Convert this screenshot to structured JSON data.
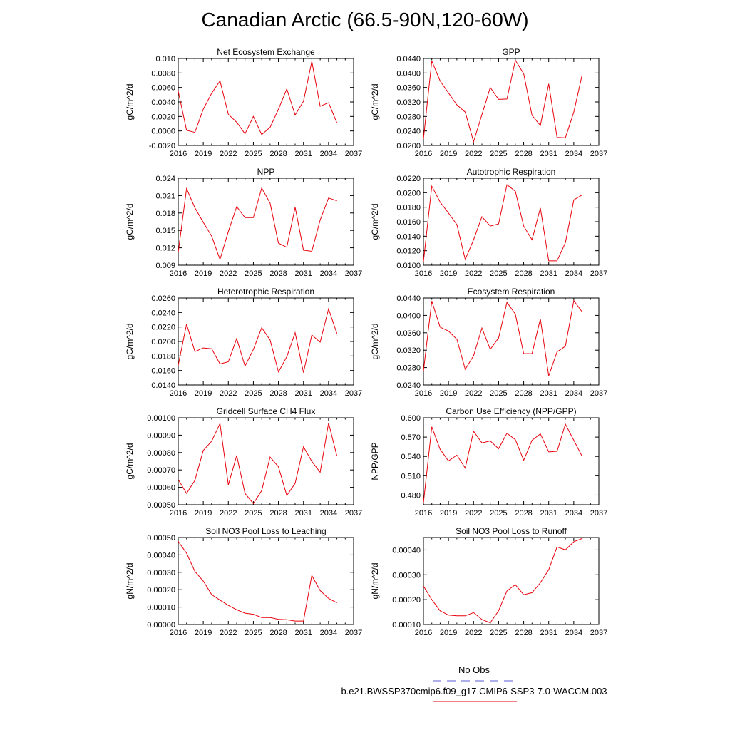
{
  "figure": {
    "title": "Canadian Arctic (66.5-90N,120-60W)",
    "legend": {
      "title": "No Obs",
      "run_label": "b.e21.BWSSP370cmip6.f09_g17.CMIP6-SSP3-7.0-WACCM.003",
      "line_color": "#e8000b",
      "obs_line_color": "#5b5bd6"
    }
  },
  "chart_data": [
    {
      "type": "line",
      "title": "Net Ecosystem Exchange",
      "ylabel": "gC/m^2/d",
      "xlim": [
        2016,
        2037
      ],
      "ylim": [
        -0.002,
        0.01
      ],
      "xticks": [
        2016,
        2019,
        2022,
        2025,
        2028,
        2031,
        2034,
        2037
      ],
      "yticks": [
        "-0.0020",
        "0.0000",
        "0.0020",
        "0.0040",
        "0.0060",
        "0.0080",
        "0.010"
      ],
      "x": [
        2016,
        2017,
        2018,
        2019,
        2020,
        2021,
        2022,
        2023,
        2024,
        2025,
        2026,
        2027,
        2028,
        2029,
        2030,
        2031,
        2032,
        2033,
        2034,
        2035
      ],
      "values": [
        0.0055,
        0.0001,
        -0.0002,
        0.003,
        0.0052,
        0.0069,
        0.0023,
        0.0012,
        -0.0004,
        0.002,
        -0.0005,
        0.0005,
        0.003,
        0.0058,
        0.0022,
        0.0041,
        0.0096,
        0.0034,
        0.0039,
        0.0011
      ]
    },
    {
      "type": "line",
      "title": "GPP",
      "ylabel": "gC/m^2/d",
      "xlim": [
        2016,
        2037
      ],
      "ylim": [
        0.02,
        0.044
      ],
      "xticks": [
        2016,
        2019,
        2022,
        2025,
        2028,
        2031,
        2034,
        2037
      ],
      "yticks": [
        "0.0200",
        "0.0240",
        "0.0280",
        "0.0320",
        "0.0360",
        "0.0400",
        "0.0440"
      ],
      "x": [
        2016,
        2017,
        2018,
        2019,
        2020,
        2021,
        2022,
        2023,
        2024,
        2025,
        2026,
        2027,
        2028,
        2029,
        2030,
        2031,
        2032,
        2033,
        2034,
        2035
      ],
      "values": [
        0.0218,
        0.0433,
        0.0378,
        0.0345,
        0.0312,
        0.0292,
        0.021,
        0.0285,
        0.036,
        0.0327,
        0.0328,
        0.0435,
        0.0398,
        0.0283,
        0.0255,
        0.037,
        0.0222,
        0.0221,
        0.0292,
        0.0395
      ]
    },
    {
      "type": "line",
      "title": "NPP",
      "ylabel": "gC/m^2/d",
      "xlim": [
        2016,
        2037
      ],
      "ylim": [
        0.009,
        0.024
      ],
      "xticks": [
        2016,
        2019,
        2022,
        2025,
        2028,
        2031,
        2034,
        2037
      ],
      "yticks": [
        "0.009",
        "0.012",
        "0.015",
        "0.018",
        "0.021",
        "0.024"
      ],
      "x": [
        2016,
        2017,
        2018,
        2019,
        2020,
        2021,
        2022,
        2023,
        2024,
        2025,
        2026,
        2027,
        2028,
        2029,
        2030,
        2031,
        2032,
        2033,
        2034,
        2035
      ],
      "values": [
        0.0112,
        0.0222,
        0.0189,
        0.0164,
        0.014,
        0.01,
        0.0148,
        0.0191,
        0.0172,
        0.0172,
        0.0223,
        0.0197,
        0.0128,
        0.0121,
        0.019,
        0.0116,
        0.0114,
        0.0168,
        0.0206,
        0.0201
      ]
    },
    {
      "type": "line",
      "title": "Autotrophic Respiration",
      "ylabel": "gC/m^2/d",
      "xlim": [
        2016,
        2037
      ],
      "ylim": [
        0.01,
        0.022
      ],
      "xticks": [
        2016,
        2019,
        2022,
        2025,
        2028,
        2031,
        2034,
        2037
      ],
      "yticks": [
        "0.0100",
        "0.0120",
        "0.0140",
        "0.0160",
        "0.0180",
        "0.0200",
        "0.0220"
      ],
      "x": [
        2016,
        2017,
        2018,
        2019,
        2020,
        2021,
        2022,
        2023,
        2024,
        2025,
        2026,
        2027,
        2028,
        2029,
        2030,
        2031,
        2032,
        2033,
        2034,
        2035
      ],
      "values": [
        0.0105,
        0.0209,
        0.0187,
        0.0172,
        0.0156,
        0.0108,
        0.0135,
        0.0167,
        0.0154,
        0.0157,
        0.0211,
        0.0202,
        0.0154,
        0.0135,
        0.0179,
        0.0106,
        0.0106,
        0.0131,
        0.019,
        0.0197
      ]
    },
    {
      "type": "line",
      "title": "Heterotrophic Respiration",
      "ylabel": "gC/m^2/d",
      "xlim": [
        2016,
        2037
      ],
      "ylim": [
        0.014,
        0.026
      ],
      "xticks": [
        2016,
        2019,
        2022,
        2025,
        2028,
        2031,
        2034,
        2037
      ],
      "yticks": [
        "0.0140",
        "0.0160",
        "0.0180",
        "0.0200",
        "0.0220",
        "0.0240",
        "0.0260"
      ],
      "x": [
        2016,
        2017,
        2018,
        2019,
        2020,
        2021,
        2022,
        2023,
        2024,
        2025,
        2026,
        2027,
        2028,
        2029,
        2030,
        2031,
        2032,
        2033,
        2034,
        2035
      ],
      "values": [
        0.0167,
        0.0224,
        0.0186,
        0.0191,
        0.019,
        0.0169,
        0.0172,
        0.0204,
        0.0166,
        0.0189,
        0.0219,
        0.0202,
        0.0158,
        0.0179,
        0.0212,
        0.0157,
        0.0209,
        0.0199,
        0.0245,
        0.0211
      ]
    },
    {
      "type": "line",
      "title": "Ecosystem Respiration",
      "ylabel": "gC/m^2/d",
      "xlim": [
        2016,
        2037
      ],
      "ylim": [
        0.024,
        0.044
      ],
      "xticks": [
        2016,
        2019,
        2022,
        2025,
        2028,
        2031,
        2034,
        2037
      ],
      "yticks": [
        "0.0240",
        "0.0280",
        "0.0320",
        "0.0360",
        "0.0400",
        "0.0440"
      ],
      "x": [
        2016,
        2017,
        2018,
        2019,
        2020,
        2021,
        2022,
        2023,
        2024,
        2025,
        2026,
        2027,
        2028,
        2029,
        2030,
        2031,
        2032,
        2033,
        2034,
        2035
      ],
      "values": [
        0.0272,
        0.0433,
        0.0373,
        0.0364,
        0.0345,
        0.0276,
        0.0307,
        0.0371,
        0.0322,
        0.0348,
        0.043,
        0.0403,
        0.0312,
        0.0312,
        0.0392,
        0.0261,
        0.0316,
        0.0329,
        0.0434,
        0.0408
      ]
    },
    {
      "type": "line",
      "title": "Gridcell Surface CH4 Flux",
      "ylabel": "gC/m^2/d",
      "xlim": [
        2016,
        2037
      ],
      "ylim": [
        0.0005,
        0.001
      ],
      "xticks": [
        2016,
        2019,
        2022,
        2025,
        2028,
        2031,
        2034,
        2037
      ],
      "yticks": [
        "0.00050",
        "0.00060",
        "0.00070",
        "0.00080",
        "0.00090",
        "0.00100"
      ],
      "x": [
        2016,
        2017,
        2018,
        2019,
        2020,
        2021,
        2022,
        2023,
        2024,
        2025,
        2026,
        2027,
        2028,
        2029,
        2030,
        2031,
        2032,
        2033,
        2034,
        2035
      ],
      "values": [
        0.000645,
        0.000565,
        0.00064,
        0.000812,
        0.000865,
        0.000967,
        0.000614,
        0.000783,
        0.000565,
        0.000506,
        0.000581,
        0.000774,
        0.000718,
        0.000553,
        0.000623,
        0.000833,
        0.000749,
        0.000687,
        0.00097,
        0.00078
      ]
    },
    {
      "type": "line",
      "title": "Carbon Use Efficiency (NPP/GPP)",
      "ylabel": "NPP/GPP",
      "xlim": [
        2016,
        2037
      ],
      "ylim": [
        0.465,
        0.6
      ],
      "xticks": [
        2016,
        2019,
        2022,
        2025,
        2028,
        2031,
        2034,
        2037
      ],
      "yticks": [
        "0.480",
        "0.510",
        "0.540",
        "0.570",
        "0.600"
      ],
      "x": [
        2016,
        2017,
        2018,
        2019,
        2020,
        2021,
        2022,
        2023,
        2024,
        2025,
        2026,
        2027,
        2028,
        2029,
        2030,
        2031,
        2032,
        2033,
        2034,
        2035
      ],
      "values": [
        0.468,
        0.586,
        0.551,
        0.533,
        0.542,
        0.522,
        0.579,
        0.561,
        0.564,
        0.552,
        0.576,
        0.566,
        0.534,
        0.565,
        0.575,
        0.547,
        0.548,
        0.59,
        0.565,
        0.54
      ]
    },
    {
      "type": "line",
      "title": "Soil NO3 Pool Loss to Leaching",
      "ylabel": "gN/m^2/d",
      "xlim": [
        2016,
        2037
      ],
      "ylim": [
        0,
        0.0005
      ],
      "xticks": [
        2016,
        2019,
        2022,
        2025,
        2028,
        2031,
        2034,
        2037
      ],
      "yticks": [
        "0.00000",
        "0.00010",
        "0.00020",
        "0.00030",
        "0.00040",
        "0.00050"
      ],
      "x": [
        2016,
        2017,
        2018,
        2019,
        2020,
        2021,
        2022,
        2023,
        2024,
        2025,
        2026,
        2027,
        2028,
        2029,
        2030,
        2031,
        2032,
        2033,
        2034,
        2035
      ],
      "values": [
        0.000478,
        0.00041,
        0.000305,
        0.00025,
        0.000172,
        0.00014,
        0.00011,
        8.5e-05,
        6.5e-05,
        5.9e-05,
        4e-05,
        4e-05,
        3e-05,
        2.8e-05,
        2e-05,
        2e-05,
        0.000282,
        0.000195,
        0.00015,
        0.000125
      ]
    },
    {
      "type": "line",
      "title": "Soil NO3 Pool Loss to Runoff",
      "ylabel": "gN/m^2/d",
      "xlim": [
        2016,
        2037
      ],
      "ylim": [
        0.0001,
        0.00045
      ],
      "xticks": [
        2016,
        2019,
        2022,
        2025,
        2028,
        2031,
        2034,
        2037
      ],
      "yticks": [
        "0.00010",
        "0.00020",
        "0.00030",
        "0.00040"
      ],
      "x": [
        2016,
        2017,
        2018,
        2019,
        2020,
        2021,
        2022,
        2023,
        2024,
        2025,
        2026,
        2027,
        2028,
        2029,
        2030,
        2031,
        2032,
        2033,
        2034,
        2035
      ],
      "values": [
        0.000255,
        0.0002,
        0.000155,
        0.000138,
        0.000135,
        0.000135,
        0.000148,
        0.00012,
        0.000107,
        0.000155,
        0.000235,
        0.00026,
        0.00022,
        0.000228,
        0.000268,
        0.00032,
        0.000412,
        0.0004,
        0.000433,
        0.000446
      ]
    }
  ]
}
